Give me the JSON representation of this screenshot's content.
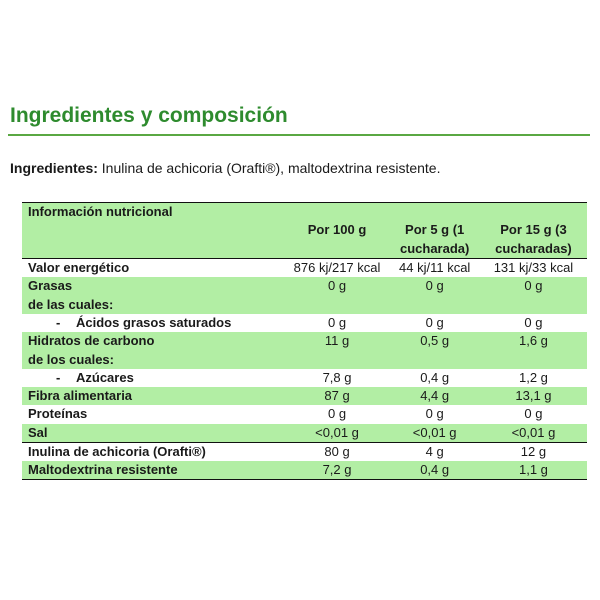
{
  "heading": "Ingredientes y composición",
  "ingredients": {
    "label": "Ingredientes:",
    "text": " Inulina de achicoria (Orafti®), maltodextrina resistente."
  },
  "table": {
    "title": "Información nutricional",
    "col_headers": [
      "Por 100 g",
      "Por 5 g (1",
      "cucharada)",
      "Por 15 g (3",
      "cucharadas)"
    ],
    "rows": {
      "energy": [
        "Valor energético",
        "876 kj/217 kcal",
        "44 kj/11 kcal",
        "131 kj/33 kcal"
      ],
      "fats_l1": "Grasas",
      "fats_l2": "de las cuales:",
      "fats_vals": [
        "0 g",
        "0 g",
        "0 g"
      ],
      "sat_dash": "-",
      "sat": [
        "Ácidos grasos saturados",
        "0 g",
        "0 g",
        "0 g"
      ],
      "carbs_l1": "Hidratos de carbono",
      "carbs_l2": "de los cuales:",
      "carbs_vals": [
        "11 g",
        "0,5 g",
        "1,6 g"
      ],
      "sugar_dash": "-",
      "sugar": [
        "Azúcares",
        "7,8 g",
        "0,4 g",
        "1,2 g"
      ],
      "fibre": [
        "Fibra alimentaria",
        "87 g",
        "4,4 g",
        "13,1 g"
      ],
      "protein": [
        "Proteínas",
        "0 g",
        "0 g",
        "0 g"
      ],
      "salt": [
        "Sal",
        "<0,01 g",
        "<0,01 g",
        "<0,01 g"
      ],
      "inulin": [
        "Inulina de achicoria (Orafti®)",
        "80 g",
        "4 g",
        "12 g"
      ],
      "malto": [
        "Maltodextrina resistente",
        "7,2 g",
        "0,4 g",
        "1,1 g"
      ]
    }
  }
}
